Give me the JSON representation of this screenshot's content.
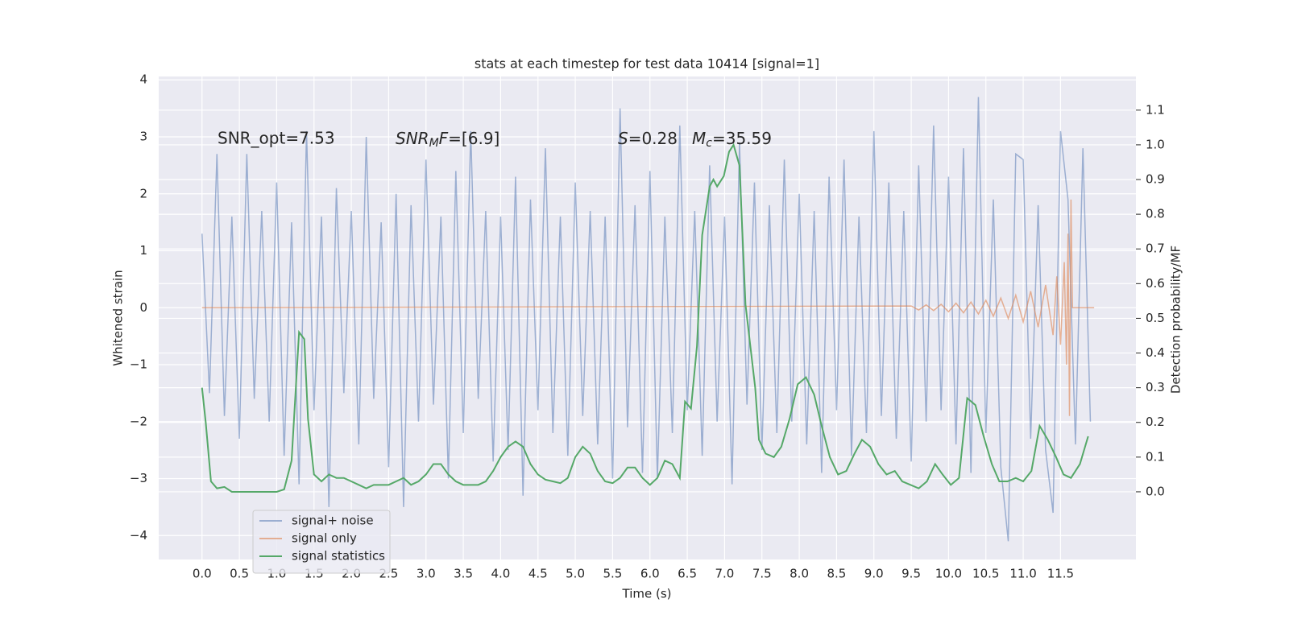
{
  "chart_data": {
    "type": "line",
    "title": "stats at each timestep for test data 10414 [signal=1]",
    "xlabel": "Time (s)",
    "ylabel": "Whitened strain",
    "y2label": "Detection probability/MF",
    "annotations": {
      "snr_opt": "SNR_opt=7.53",
      "snr_mf": {
        "main": "SNR",
        "sub": "M",
        "after": "F",
        "value": "=[6.9]"
      },
      "s": {
        "main": "S",
        "value": "=0.28"
      },
      "mc": {
        "main": "M",
        "sub": "c",
        "value": "=35.59"
      }
    },
    "xlim": [
      -0.58,
      12.51
    ],
    "ylim": [
      -4.42,
      4.06
    ],
    "y2lim": [
      -0.195,
      1.197
    ],
    "xticks": [
      {
        "value": 0,
        "label": "0.0"
      },
      {
        "value": 0.5,
        "label": "0.5"
      },
      {
        "value": 1,
        "label": "1.0"
      },
      {
        "value": 1.5,
        "label": "1.5"
      },
      {
        "value": 2,
        "label": "2.0"
      },
      {
        "value": 2.5,
        "label": "2.5"
      },
      {
        "value": 3,
        "label": "3.0"
      },
      {
        "value": 3.5,
        "label": "3.5"
      },
      {
        "value": 4,
        "label": "4.0"
      },
      {
        "value": 4.5,
        "label": "4.5"
      },
      {
        "value": 5,
        "label": "5.0"
      },
      {
        "value": 5.5,
        "label": "5.5"
      },
      {
        "value": 6,
        "label": "6.0"
      },
      {
        "value": 6.5,
        "label": "6.5"
      },
      {
        "value": 7,
        "label": "7.0"
      },
      {
        "value": 7.5,
        "label": "7.5"
      },
      {
        "value": 8,
        "label": "8.0"
      },
      {
        "value": 8.5,
        "label": "8.5"
      },
      {
        "value": 9,
        "label": "9.0"
      },
      {
        "value": 9.5,
        "label": "9.5"
      },
      {
        "value": 10,
        "label": "10.0"
      },
      {
        "value": 10.5,
        "label": "10.5"
      },
      {
        "value": 11,
        "label": "11.0"
      },
      {
        "value": 11.5,
        "label": "11.5"
      }
    ],
    "yticks": [
      {
        "value": -4,
        "label": "−4"
      },
      {
        "value": -3,
        "label": "−3"
      },
      {
        "value": -2,
        "label": "−2"
      },
      {
        "value": -1,
        "label": "−1"
      },
      0,
      1,
      2,
      3,
      4
    ],
    "y2ticks": [
      {
        "value": 0,
        "label": "0.0"
      },
      {
        "value": 0.1,
        "label": "0.1"
      },
      {
        "value": 0.2,
        "label": "0.2"
      },
      {
        "value": 0.3,
        "label": "0.3"
      },
      {
        "value": 0.4,
        "label": "0.4"
      },
      {
        "value": 0.5,
        "label": "0.5"
      },
      {
        "value": 0.6,
        "label": "0.6"
      },
      {
        "value": 0.7,
        "label": "0.7"
      },
      {
        "value": 0.8,
        "label": "0.8"
      },
      {
        "value": 0.9,
        "label": "0.9"
      },
      {
        "value": 1,
        "label": "1.0"
      },
      {
        "value": 1.1,
        "label": "1.1"
      }
    ],
    "grid": true,
    "legend": "lower left",
    "series": [
      {
        "name": "signal+ noise",
        "color": "#4c72b0",
        "opacity": 0.5,
        "x": [
          0,
          0.1,
          0.2,
          0.3,
          0.4,
          0.5,
          0.6,
          0.7,
          0.8,
          0.9,
          1,
          1.1,
          1.2,
          1.3,
          1.4,
          1.5,
          1.6,
          1.7,
          1.8,
          1.9,
          2,
          2.1,
          2.2,
          2.3,
          2.4,
          2.5,
          2.6,
          2.7,
          2.8,
          2.9,
          3,
          3.1,
          3.2,
          3.3,
          3.4,
          3.5,
          3.6,
          3.7,
          3.8,
          3.9,
          4,
          4.1,
          4.2,
          4.3,
          4.4,
          4.5,
          4.6,
          4.7,
          4.8,
          4.9,
          5,
          5.1,
          5.2,
          5.3,
          5.4,
          5.5,
          5.6,
          5.7,
          5.8,
          5.9,
          6,
          6.1,
          6.2,
          6.3,
          6.4,
          6.5,
          6.6,
          6.7,
          6.8,
          6.9,
          7,
          7.1,
          7.2,
          7.3,
          7.4,
          7.5,
          7.6,
          7.7,
          7.8,
          7.9,
          8,
          8.1,
          8.2,
          8.3,
          8.4,
          8.5,
          8.6,
          8.7,
          8.8,
          8.9,
          9,
          9.1,
          9.2,
          9.3,
          9.4,
          9.5,
          9.6,
          9.7,
          9.8,
          9.9,
          10,
          10.1,
          10.2,
          10.3,
          10.4,
          10.5,
          10.6,
          10.7,
          10.8,
          10.9,
          11,
          11.1,
          11.2,
          11.3,
          11.4,
          11.5,
          11.6,
          11.7,
          11.8,
          11.9
        ],
        "values": [
          1.3,
          -1.5,
          2.7,
          -1.9,
          1.6,
          -2.3,
          2.7,
          -1.6,
          1.7,
          -2.0,
          2.2,
          -2.6,
          1.5,
          -3.1,
          3.1,
          -1.8,
          1.6,
          -3.5,
          2.1,
          -1.5,
          1.7,
          -2.4,
          3.0,
          -1.6,
          1.5,
          -2.8,
          2.0,
          -3.5,
          1.8,
          -2.0,
          2.6,
          -1.7,
          1.6,
          -3.0,
          2.4,
          -2.2,
          3.1,
          -1.6,
          1.7,
          -2.7,
          1.6,
          -2.5,
          2.3,
          -3.3,
          1.9,
          -1.8,
          2.8,
          -2.2,
          1.6,
          -2.6,
          2.2,
          -1.9,
          1.7,
          -2.4,
          1.6,
          -3.0,
          3.5,
          -2.1,
          1.8,
          -2.9,
          2.4,
          -3.0,
          1.6,
          -2.2,
          3.2,
          -1.8,
          1.7,
          -2.6,
          2.5,
          -2.0,
          1.6,
          -3.1,
          2.9,
          -1.7,
          2.2,
          -2.5,
          1.8,
          -2.2,
          2.6,
          -2.0,
          2.0,
          -2.4,
          1.7,
          -2.9,
          2.3,
          -1.8,
          2.6,
          -2.6,
          1.6,
          -2.2,
          3.1,
          -1.9,
          2.2,
          -2.3,
          1.7,
          -2.7,
          2.5,
          -2.0,
          3.2,
          -1.8,
          2.3,
          -2.4,
          2.8,
          -2.9,
          3.7,
          -2.2,
          1.9,
          -2.8,
          -4.1,
          2.7,
          2.6,
          -2.3,
          1.8,
          -2.5,
          -3.6,
          3.1,
          1.9,
          -2.4,
          2.8,
          -2.0
        ]
      },
      {
        "name": "signal only",
        "color": "#dd8452",
        "opacity": 0.6,
        "x": [
          0,
          9.5,
          9.6,
          9.7,
          9.8,
          9.9,
          10.0,
          10.1,
          10.2,
          10.3,
          10.4,
          10.5,
          10.6,
          10.7,
          10.8,
          10.9,
          11.0,
          11.1,
          11.2,
          11.3,
          11.4,
          11.45,
          11.5,
          11.55,
          11.58,
          11.6,
          11.62,
          11.64,
          11.66,
          11.95
        ],
        "values": [
          0,
          0.03,
          -0.04,
          0.05,
          -0.05,
          0.06,
          -0.07,
          0.08,
          -0.09,
          0.1,
          -0.11,
          0.13,
          -0.15,
          0.17,
          -0.19,
          0.22,
          -0.25,
          0.29,
          -0.34,
          0.4,
          -0.48,
          0.55,
          -0.65,
          0.8,
          -1.0,
          1.3,
          -1.9,
          1.9,
          0,
          0
        ]
      },
      {
        "name": "signal statistics",
        "color": "#55a868",
        "axis": "y2",
        "opacity": 1,
        "x": [
          0,
          0.05,
          0.12,
          0.2,
          0.3,
          0.4,
          0.6,
          0.8,
          1.0,
          1.1,
          1.2,
          1.3,
          1.37,
          1.42,
          1.5,
          1.6,
          1.7,
          1.8,
          1.9,
          2.0,
          2.1,
          2.2,
          2.3,
          2.4,
          2.5,
          2.6,
          2.7,
          2.8,
          2.9,
          3.0,
          3.1,
          3.2,
          3.3,
          3.4,
          3.5,
          3.6,
          3.7,
          3.8,
          3.9,
          4.0,
          4.1,
          4.2,
          4.3,
          4.4,
          4.5,
          4.6,
          4.7,
          4.8,
          4.9,
          5.0,
          5.1,
          5.2,
          5.3,
          5.4,
          5.5,
          5.6,
          5.7,
          5.8,
          5.9,
          6.0,
          6.1,
          6.2,
          6.3,
          6.4,
          6.47,
          6.55,
          6.63,
          6.7,
          6.8,
          6.85,
          6.9,
          6.99,
          7.06,
          7.12,
          7.2,
          7.28,
          7.41,
          7.46,
          7.55,
          7.66,
          7.76,
          7.87,
          7.98,
          8.09,
          8.2,
          8.3,
          8.41,
          8.52,
          8.63,
          8.74,
          8.84,
          8.95,
          9.06,
          9.17,
          9.28,
          9.38,
          9.49,
          9.6,
          9.71,
          9.82,
          9.92,
          10.03,
          10.14,
          10.25,
          10.36,
          10.47,
          10.58,
          10.68,
          10.79,
          10.9,
          11.0,
          11.11,
          11.22,
          11.33,
          11.44,
          11.54,
          11.64,
          11.76,
          11.87
        ],
        "values": [
          0.3,
          0.2,
          0.03,
          0.01,
          0.014,
          0.0,
          0.0,
          0.0,
          0.0,
          0.007,
          0.09,
          0.46,
          0.44,
          0.21,
          0.05,
          0.03,
          0.05,
          0.04,
          0.04,
          0.03,
          0.02,
          0.01,
          0.02,
          0.02,
          0.02,
          0.03,
          0.04,
          0.02,
          0.03,
          0.05,
          0.08,
          0.08,
          0.05,
          0.03,
          0.02,
          0.02,
          0.02,
          0.03,
          0.06,
          0.1,
          0.13,
          0.145,
          0.13,
          0.08,
          0.05,
          0.035,
          0.03,
          0.025,
          0.04,
          0.1,
          0.13,
          0.11,
          0.06,
          0.03,
          0.025,
          0.04,
          0.07,
          0.07,
          0.04,
          0.02,
          0.04,
          0.09,
          0.08,
          0.04,
          0.26,
          0.24,
          0.42,
          0.74,
          0.88,
          0.9,
          0.88,
          0.91,
          0.98,
          1.0,
          0.94,
          0.54,
          0.3,
          0.15,
          0.11,
          0.1,
          0.13,
          0.21,
          0.31,
          0.33,
          0.28,
          0.19,
          0.1,
          0.05,
          0.06,
          0.11,
          0.15,
          0.13,
          0.08,
          0.05,
          0.06,
          0.03,
          0.02,
          0.01,
          0.03,
          0.08,
          0.05,
          0.02,
          0.04,
          0.27,
          0.25,
          0.16,
          0.08,
          0.03,
          0.03,
          0.04,
          0.03,
          0.06,
          0.19,
          0.15,
          0.1,
          0.05,
          0.04,
          0.08,
          0.16
        ]
      }
    ]
  }
}
